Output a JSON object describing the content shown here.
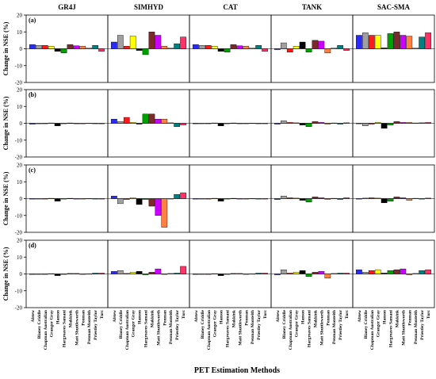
{
  "chart_data": {
    "type": "bar",
    "xlabel": "PET Estimation Methods",
    "ylabel": "Change in NSE (%)",
    "ylim": [
      -20,
      20
    ],
    "yticks": [
      -20,
      -10,
      0,
      10,
      20
    ],
    "grid": false,
    "models": [
      "GR4J",
      "SIMHYD",
      "CAT",
      "TANK",
      "SAC-SMA"
    ],
    "categories": [
      "Abtew",
      "Blaney Criddle",
      "Chapman Australian",
      "Granger Gray",
      "Hamon",
      "Hargreaves Samani",
      "Makkink",
      "Matt Shuttleworth",
      "Penman",
      "Penman Monteith",
      "Priestley Taylor",
      "Turc"
    ],
    "bar_colors": [
      "#2a2aff",
      "#a0a0a0",
      "#ff1a1a",
      "#ffff00",
      "#000000",
      "#00a000",
      "#7a2a2a",
      "#cc00ff",
      "#ff8040",
      "#e0e0e0",
      "#008080",
      "#ff3366"
    ],
    "panels": [
      {
        "label": "(a)",
        "values": [
          [
            2.5,
            2.0,
            2.0,
            1.5,
            -1.5,
            -2.5,
            2.5,
            1.8,
            1.5,
            0.5,
            2.0,
            -1.5
          ],
          [
            4.0,
            8.0,
            1.5,
            7.5,
            -1.0,
            -3.5,
            10.0,
            8.0,
            1.5,
            0.5,
            3.0,
            7.0
          ],
          [
            2.5,
            2.0,
            2.0,
            1.5,
            -1.5,
            -2.0,
            2.5,
            1.8,
            1.5,
            0.5,
            2.0,
            -1.5
          ],
          [
            -0.5,
            3.5,
            -2.0,
            1.5,
            4.0,
            -2.0,
            5.0,
            4.5,
            -2.5,
            0.5,
            2.0,
            -1.0
          ],
          [
            8.0,
            9.5,
            8.0,
            8.0,
            0.5,
            9.0,
            10.0,
            8.0,
            7.5,
            0.5,
            7.0,
            9.5
          ]
        ]
      },
      {
        "label": "(b)",
        "values": [
          [
            -0.5,
            -0.3,
            -0.2,
            0.2,
            -1.5,
            -0.2,
            0.2,
            -0.3,
            -0.3,
            0.1,
            -0.2,
            -0.3
          ],
          [
            2.5,
            1.0,
            3.5,
            0.5,
            -0.5,
            5.5,
            5.5,
            2.5,
            2.5,
            0.3,
            -2.0,
            -1.0
          ],
          [
            -0.3,
            -0.2,
            -0.2,
            0.2,
            -1.5,
            -0.2,
            0.2,
            -0.2,
            -0.2,
            0.1,
            -0.2,
            -0.2
          ],
          [
            -0.5,
            1.5,
            0.5,
            0.3,
            -1.0,
            -2.0,
            1.0,
            0.5,
            -0.5,
            0.2,
            -0.5,
            0.3
          ],
          [
            -0.3,
            -1.5,
            -0.5,
            0.5,
            -3.0,
            -1.0,
            1.0,
            0.5,
            0.5,
            0.2,
            0.3,
            0.5
          ]
        ]
      },
      {
        "label": "(c)",
        "values": [
          [
            -0.3,
            -0.2,
            -0.2,
            0.2,
            -1.5,
            -0.2,
            0.2,
            -0.2,
            -0.2,
            0.1,
            -0.2,
            -0.2
          ],
          [
            1.5,
            -3.0,
            -0.5,
            0.5,
            -3.5,
            -0.5,
            -4.5,
            -10.0,
            -17.0,
            -0.2,
            2.5,
            3.5
          ],
          [
            -0.3,
            -0.2,
            -0.2,
            0.2,
            -1.5,
            -0.2,
            0.2,
            -0.2,
            -0.2,
            0.1,
            -0.2,
            -0.2
          ],
          [
            -0.5,
            1.5,
            0.5,
            0.3,
            -1.0,
            -2.0,
            1.0,
            0.5,
            -0.5,
            0.2,
            -0.5,
            0.5
          ],
          [
            -0.3,
            0.3,
            0.5,
            0.3,
            -2.5,
            -1.5,
            1.0,
            0.5,
            -1.0,
            0.2,
            -0.3,
            0.3
          ]
        ]
      },
      {
        "label": "(d)",
        "values": [
          [
            -0.3,
            -0.2,
            -0.2,
            0.2,
            -1.0,
            -0.2,
            0.3,
            0.3,
            -0.2,
            0.1,
            0.5,
            0.5
          ],
          [
            1.5,
            2.0,
            0.3,
            1.0,
            1.5,
            -0.5,
            1.0,
            3.0,
            -0.3,
            0.3,
            0.5,
            4.5
          ],
          [
            -0.3,
            -0.2,
            -0.2,
            0.2,
            -1.0,
            -0.2,
            0.3,
            0.3,
            -0.2,
            0.1,
            0.5,
            0.5
          ],
          [
            -0.5,
            2.5,
            0.5,
            1.0,
            2.0,
            -1.5,
            1.0,
            1.5,
            -2.5,
            0.3,
            0.5,
            0.5
          ],
          [
            2.5,
            1.0,
            2.0,
            2.5,
            0.5,
            2.0,
            2.5,
            3.0,
            -0.5,
            0.3,
            2.0,
            2.5
          ]
        ]
      }
    ]
  }
}
